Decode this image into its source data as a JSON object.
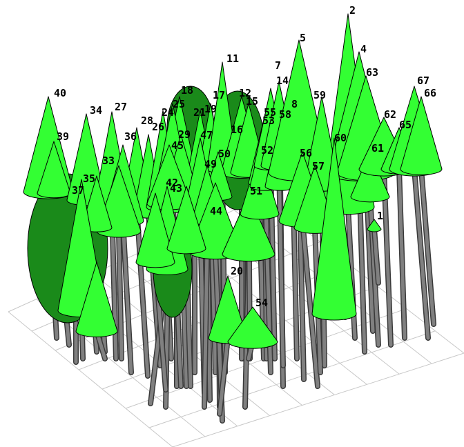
{
  "scene": {
    "colors": {
      "background": "#ffffff",
      "grid": "#c8c8c8",
      "crown_light": "#33ff33",
      "crown_dark": "#1a8a1a",
      "outline": "#000000",
      "trunk": "#808080",
      "trunk_edge": "#3a3a3a"
    },
    "tree_labels": {
      "t1": "1",
      "t2": "2",
      "t4": "4",
      "t5": "5",
      "t7": "7",
      "t8": "8",
      "t11": "11",
      "t12": "12",
      "t14": "14",
      "t15": "15",
      "t16": "16",
      "t17": "17",
      "t18": "18",
      "t19": "19",
      "t20": "20",
      "t21": "21",
      "t24": "24",
      "t25": "25",
      "t26": "26",
      "t27": "27",
      "t28": "28",
      "t29": "29",
      "t33": "33",
      "t34": "34",
      "t35": "35",
      "t36": "36",
      "t37": "37",
      "t39": "39",
      "t40": "40",
      "t42": "42",
      "t43": "43",
      "t44": "44",
      "t45": "45",
      "t47": "47",
      "t49": "49",
      "t50": "50",
      "t51": "51",
      "t52": "52",
      "t53": "53",
      "t54": "54",
      "t55": "55",
      "t56": "56",
      "t57": "57",
      "t58": "58",
      "t59": "59",
      "t60": "60",
      "t61": "61",
      "t62": "62",
      "t63": "63",
      "t65": "65",
      "t66": "66",
      "t67": "67"
    }
  }
}
